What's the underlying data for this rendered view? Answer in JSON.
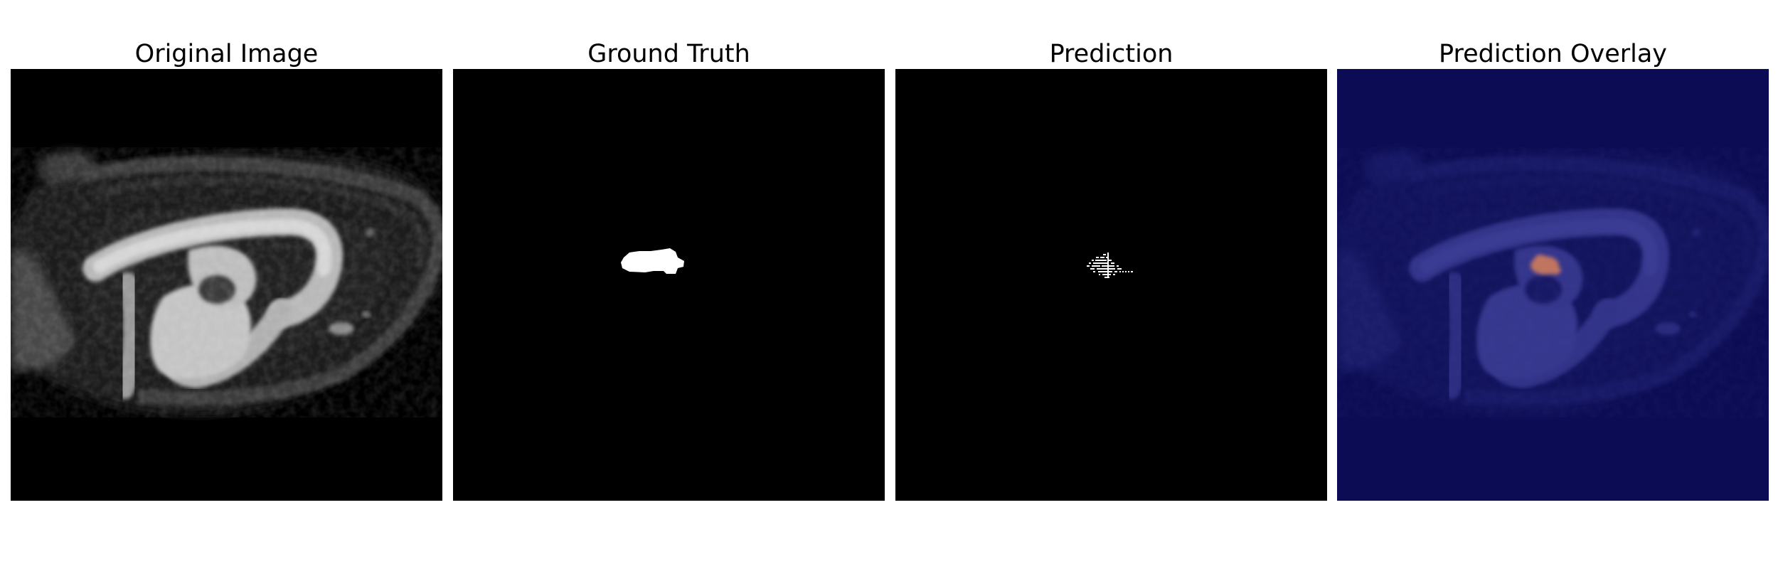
{
  "figure": {
    "panels": [
      {
        "title": "Original Image"
      },
      {
        "title": "Ground Truth"
      },
      {
        "title": "Prediction"
      },
      {
        "title": "Prediction Overlay"
      }
    ]
  }
}
